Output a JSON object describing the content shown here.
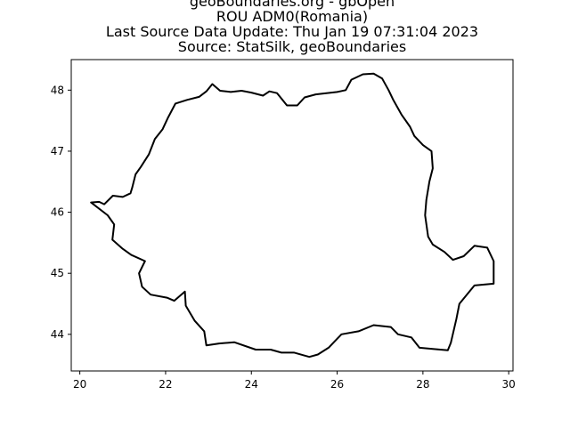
{
  "figure": {
    "title_lines": [
      "geoBoundaries.org - gbOpen",
      "ROU ADM0(Romania)",
      "Last Source Data Update: Thu Jan 19 07:31:04 2023",
      "Source: StatSilk, geoBoundaries"
    ]
  },
  "chart_data": {
    "type": "map",
    "xlim": [
      19.8,
      30.1
    ],
    "ylim": [
      43.4,
      48.5
    ],
    "x_ticks": [
      "20",
      "22",
      "24",
      "26",
      "28",
      "30"
    ],
    "y_ticks": [
      "44",
      "45",
      "46",
      "47",
      "48"
    ],
    "grid": false,
    "outline_color": "#000000",
    "boundary": [
      [
        20.26,
        46.16
      ],
      [
        20.45,
        46.17
      ],
      [
        20.57,
        46.13
      ],
      [
        20.77,
        46.27
      ],
      [
        21.0,
        46.25
      ],
      [
        21.18,
        46.31
      ],
      [
        21.22,
        46.4
      ],
      [
        21.3,
        46.62
      ],
      [
        21.42,
        46.74
      ],
      [
        21.61,
        46.95
      ],
      [
        21.75,
        47.2
      ],
      [
        21.93,
        47.36
      ],
      [
        22.05,
        47.54
      ],
      [
        22.23,
        47.78
      ],
      [
        22.5,
        47.84
      ],
      [
        22.78,
        47.89
      ],
      [
        22.95,
        47.98
      ],
      [
        23.09,
        48.1
      ],
      [
        23.27,
        47.99
      ],
      [
        23.52,
        47.97
      ],
      [
        23.77,
        47.99
      ],
      [
        24.0,
        47.96
      ],
      [
        24.27,
        47.91
      ],
      [
        24.42,
        47.98
      ],
      [
        24.6,
        47.95
      ],
      [
        24.83,
        47.75
      ],
      [
        25.07,
        47.75
      ],
      [
        25.24,
        47.88
      ],
      [
        25.5,
        47.93
      ],
      [
        26.0,
        47.97
      ],
      [
        26.2,
        48.0
      ],
      [
        26.33,
        48.17
      ],
      [
        26.6,
        48.26
      ],
      [
        26.85,
        48.27
      ],
      [
        27.05,
        48.19
      ],
      [
        27.2,
        48.0
      ],
      [
        27.3,
        47.85
      ],
      [
        27.5,
        47.6
      ],
      [
        27.7,
        47.4
      ],
      [
        27.8,
        47.25
      ],
      [
        28.0,
        47.1
      ],
      [
        28.2,
        47.0
      ],
      [
        28.23,
        46.72
      ],
      [
        28.15,
        46.5
      ],
      [
        28.08,
        46.2
      ],
      [
        28.05,
        45.95
      ],
      [
        28.12,
        45.6
      ],
      [
        28.23,
        45.47
      ],
      [
        28.5,
        45.35
      ],
      [
        28.7,
        45.22
      ],
      [
        28.95,
        45.28
      ],
      [
        29.2,
        45.45
      ],
      [
        29.5,
        45.42
      ],
      [
        29.65,
        45.2
      ],
      [
        29.65,
        44.83
      ],
      [
        29.2,
        44.8
      ],
      [
        28.85,
        44.5
      ],
      [
        28.78,
        44.25
      ],
      [
        28.65,
        43.86
      ],
      [
        28.58,
        43.74
      ],
      [
        28.23,
        43.76
      ],
      [
        27.92,
        43.78
      ],
      [
        27.73,
        43.95
      ],
      [
        27.42,
        44.0
      ],
      [
        27.25,
        44.12
      ],
      [
        26.85,
        44.15
      ],
      [
        26.5,
        44.05
      ],
      [
        26.1,
        44.0
      ],
      [
        25.8,
        43.78
      ],
      [
        25.55,
        43.67
      ],
      [
        25.35,
        43.63
      ],
      [
        25.0,
        43.7
      ],
      [
        24.7,
        43.7
      ],
      [
        24.45,
        43.75
      ],
      [
        24.1,
        43.75
      ],
      [
        23.6,
        43.87
      ],
      [
        23.25,
        43.85
      ],
      [
        22.95,
        43.82
      ],
      [
        22.9,
        44.05
      ],
      [
        22.68,
        44.22
      ],
      [
        22.47,
        44.47
      ],
      [
        22.45,
        44.7
      ],
      [
        22.2,
        44.55
      ],
      [
        22.03,
        44.6
      ],
      [
        21.65,
        44.65
      ],
      [
        21.45,
        44.78
      ],
      [
        21.38,
        45.0
      ],
      [
        21.52,
        45.2
      ],
      [
        21.2,
        45.3
      ],
      [
        21.0,
        45.4
      ],
      [
        20.76,
        45.55
      ],
      [
        20.8,
        45.8
      ],
      [
        20.65,
        45.95
      ],
      [
        20.26,
        46.16
      ]
    ]
  }
}
